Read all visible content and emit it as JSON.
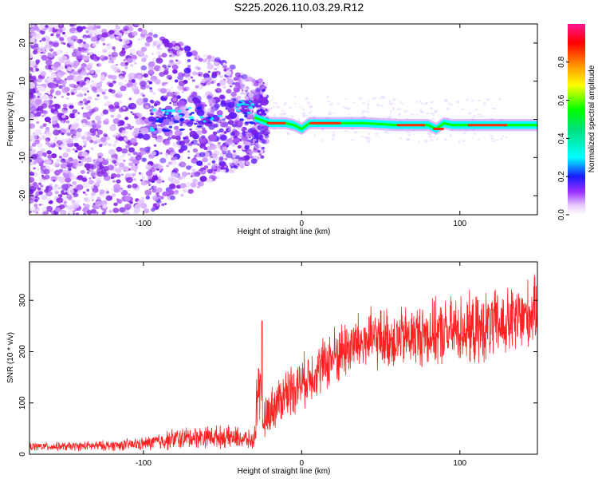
{
  "title": "S225.2026.110.03.29.R12",
  "colors": {
    "axis": "#000000",
    "snr_line": "#ff2222",
    "cloud": "#8a2be2"
  },
  "chart_data": [
    {
      "type": "heatmap",
      "title": "S225.2026.110.03.29.R12",
      "xlabel": "Height of straight line (km)",
      "ylabel": "Frequency (Hz)",
      "xlim": [
        -172,
        149
      ],
      "ylim": [
        -25,
        25
      ],
      "xticks": [
        -100,
        0,
        100
      ],
      "xtick_labels": [
        "-100",
        "0",
        "100"
      ],
      "yticks": [
        -20,
        -10,
        0,
        10,
        20
      ],
      "ytick_labels": [
        "-20",
        "-10",
        "0",
        "10",
        "20"
      ],
      "colorbar": {
        "label": "Normalized spectral amplitude",
        "range": [
          0,
          1
        ],
        "ticks": [
          0,
          0.2,
          0.4,
          0.6,
          0.8
        ],
        "tick_labels": [
          "0.0",
          "0.2",
          "0.4",
          "0.6",
          "0.8"
        ]
      },
      "trace": {
        "x": [
          -30,
          -20,
          -10,
          -5,
          0,
          5,
          10,
          20,
          40,
          60,
          80,
          85,
          90,
          95,
          100,
          110,
          120,
          130,
          149
        ],
        "y": [
          0.5,
          -1.0,
          -1.0,
          -1.5,
          -2.5,
          -1.0,
          -1.0,
          -1.0,
          -1.0,
          -1.5,
          -1.5,
          -2.5,
          -1.0,
          -1.5,
          -1.5,
          -1.5,
          -1.5,
          -1.5,
          -1.5
        ]
      }
    },
    {
      "type": "line",
      "xlabel": "Height of straight line (km)",
      "ylabel": "SNR (10 * v/v)",
      "xlim": [
        -172,
        149
      ],
      "ylim": [
        0,
        375
      ],
      "xticks": [
        -100,
        0,
        100
      ],
      "xtick_labels": [
        "-100",
        "0",
        "100"
      ],
      "yticks": [
        0,
        100,
        200,
        300
      ],
      "ytick_labels": [
        "0",
        "100",
        "200",
        "300"
      ],
      "series": [
        {
          "name": "SNR",
          "x": [
            -172,
            -150,
            -120,
            -100,
            -80,
            -60,
            -40,
            -30,
            -27,
            -25,
            -20,
            -10,
            0,
            10,
            20,
            30,
            40,
            50,
            60,
            70,
            80,
            90,
            100,
            110,
            120,
            130,
            140,
            149
          ],
          "mean": [
            15,
            15,
            17,
            20,
            30,
            35,
            32,
            25,
            160,
            60,
            85,
            120,
            140,
            165,
            190,
            210,
            220,
            225,
            225,
            230,
            235,
            235,
            245,
            240,
            250,
            255,
            265,
            285
          ],
          "amplitude": [
            10,
            10,
            12,
            15,
            25,
            25,
            25,
            20,
            100,
            40,
            50,
            60,
            60,
            60,
            70,
            70,
            70,
            70,
            70,
            70,
            75,
            75,
            80,
            80,
            80,
            80,
            85,
            70
          ]
        }
      ]
    }
  ]
}
